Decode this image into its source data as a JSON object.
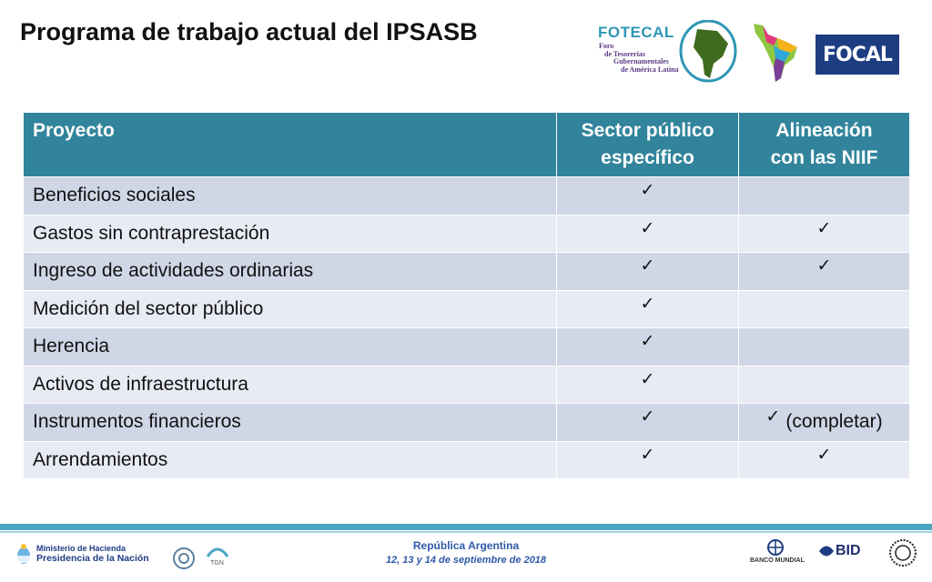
{
  "title": "Programa de trabajo actual del IPSASB",
  "logos": {
    "fotecal": "FOTECAL",
    "fotecal_sub": [
      "Foro",
      "de Tesorerías",
      "Gubernamentales",
      "de América Latina"
    ],
    "focal": "FOCAL"
  },
  "table": {
    "headers": {
      "project": "Proyecto",
      "sector_l1": "Sector público",
      "sector_l2": "específico",
      "niif_l1": "Alineación",
      "niif_l2": "con las NIIF"
    },
    "check_symbol": "✓",
    "rows": [
      {
        "name": "Beneficios sociales",
        "sector": "✓",
        "niif": ""
      },
      {
        "name": "Gastos sin contraprestación",
        "sector": "✓",
        "niif": "✓"
      },
      {
        "name": "Ingreso de actividades ordinarias",
        "sector": "✓",
        "niif": "✓"
      },
      {
        "name": "Medición del sector público",
        "sector": "✓",
        "niif": ""
      },
      {
        "name": "Herencia",
        "sector": "✓",
        "niif": ""
      },
      {
        "name": "Activos de infraestructura",
        "sector": "✓",
        "niif": ""
      },
      {
        "name": "Instrumentos financieros",
        "sector": "✓",
        "niif": "✓",
        "niif_extra": "(completar)"
      },
      {
        "name": "Arrendamientos",
        "sector": "✓",
        "niif": "✓"
      }
    ]
  },
  "footer": {
    "country": "República Argentina",
    "dates": "12, 13 y 14 de septiembre de 2018",
    "ministerio": "Ministerio de Hacienda",
    "presidencia": "Presidencia de la Nación",
    "tgn": "TGN",
    "banco_mundial": "BANCO MUNDIAL",
    "bid": "BID"
  },
  "colors": {
    "header_bg": "#31849b",
    "row_odd": "#cfd6e6",
    "row_even": "#e8ebf4",
    "footer_bar": "#4aa7c4"
  }
}
